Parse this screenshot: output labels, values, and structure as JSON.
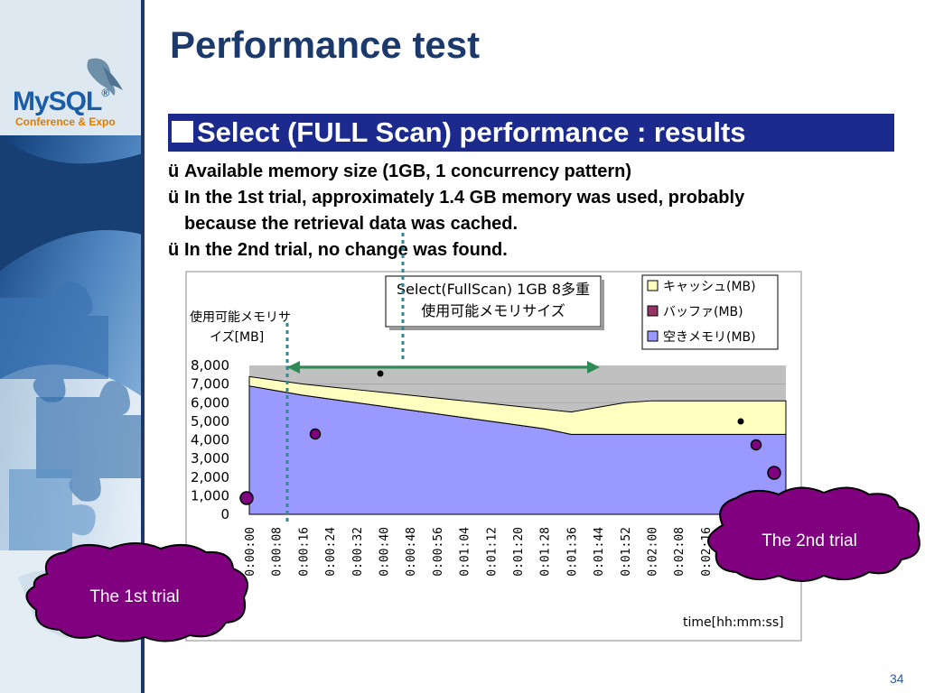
{
  "slide": {
    "title": "Performance test",
    "heading": "Select (FULL Scan) performance : results",
    "bullets": [
      "Available memory size (1GB, 1 concurrency pattern)",
      "In the 1st trial, approximately 1.4 GB  memory was used, probably because the retrieval data was cached.",
      "In the 2nd trial, no change was found."
    ],
    "check_glyph": "ü",
    "slide_number": "34"
  },
  "logo": {
    "text": "MySQL",
    "registered": "®",
    "subtitle": "Conference & Expo",
    "icon": "dolphin-icon"
  },
  "callouts": {
    "first_trial": "The 1st trial",
    "second_trial": "The 2nd trial"
  },
  "colors": {
    "cache": "#ffffc0",
    "buffer": "#993366",
    "free": "#9999ff",
    "title": "#1b3a6b",
    "heading_bar": "#1b2a8c",
    "callout": "#800080"
  },
  "chart_data": {
    "type": "area",
    "title_lines": [
      "Select(FullScan) 1GB 8多重",
      "使用可能メモリサイズ"
    ],
    "ylabel_lines": [
      "使用可能メモリサ",
      "イズ[MB]"
    ],
    "xlabel": "time[hh:mm:ss]",
    "ylim": [
      0,
      8000
    ],
    "yticks": [
      "8,000",
      "7,000",
      "6,000",
      "5,000",
      "4,000",
      "3,000",
      "2,000",
      "1,000",
      "0"
    ],
    "legend_position": "top-right",
    "stacked": true,
    "x": [
      "0:00:00",
      "0:00:08",
      "0:00:16",
      "0:00:24",
      "0:00:32",
      "0:00:40",
      "0:00:48",
      "0:00:56",
      "0:01:04",
      "0:01:12",
      "0:01:20",
      "0:01:28",
      "0:01:36",
      "0:01:44",
      "0:01:52",
      "0:02:00",
      "0:02:08",
      "0:02:16",
      "0:02:24",
      "0:02:32",
      "0:02:40"
    ],
    "x_labels_visible": [
      "0:00:00",
      "0:00:08",
      "0:00:16",
      "0:00:24",
      "0:00:32",
      "0:00:40",
      "0:00:48",
      "0:00:56",
      "0:01:04",
      "0:01:12",
      "0:01:20",
      "0:01:28",
      "0:01:36",
      "0:01:44",
      "0:01:52",
      "0:02:00",
      "0:02:08",
      "0:02:16",
      "0:",
      "0",
      "0"
    ],
    "series": [
      {
        "name": "空きメモリ(MB)",
        "values": [
          6900,
          6650,
          6400,
          6200,
          6000,
          5800,
          5600,
          5400,
          5200,
          5000,
          4800,
          4600,
          4300,
          4300,
          4300,
          4300,
          4300,
          4300,
          4300,
          4300,
          4300
        ]
      },
      {
        "name": "バッファ(MB)",
        "values": [
          0,
          0,
          0,
          0,
          0,
          0,
          0,
          0,
          0,
          0,
          0,
          0,
          0,
          0,
          0,
          0,
          0,
          0,
          0,
          0,
          0
        ]
      },
      {
        "name": "キャッシュ(MB)",
        "values": [
          500,
          550,
          600,
          650,
          700,
          750,
          800,
          850,
          900,
          950,
          1000,
          1050,
          1200,
          1450,
          1700,
          1800,
          1800,
          1800,
          1800,
          1800,
          1800
        ]
      }
    ],
    "legend_order": [
      "キャッシュ(MB)",
      "バッファ(MB)",
      "空きメモリ(MB)"
    ]
  }
}
